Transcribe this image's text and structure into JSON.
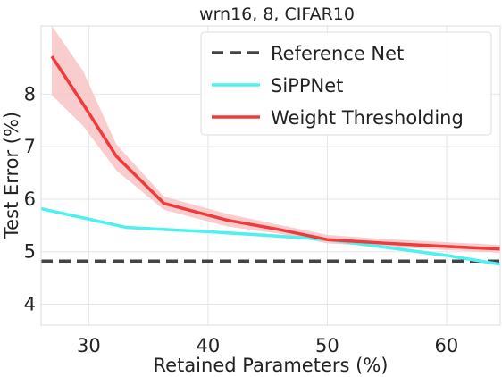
{
  "chart_data": {
    "type": "line",
    "title": "wrn16, 8, CIFAR10",
    "xlabel": "Retained Parameters (%)",
    "ylabel": "Test Error (%)",
    "xlim": [
      26,
      64.5
    ],
    "ylim": [
      3.6,
      9.3
    ],
    "xticks": [
      30,
      40,
      50,
      60
    ],
    "yticks": [
      4,
      5,
      6,
      7,
      8
    ],
    "grid": true,
    "legend_position": "top-right",
    "series": [
      {
        "name": "Reference Net",
        "style": "dashed",
        "color": "#444444",
        "x": [
          26,
          64.5
        ],
        "y": [
          4.82,
          4.82
        ]
      },
      {
        "name": "SiPPNet",
        "style": "solid",
        "color": "#4ff0f0",
        "x": [
          26,
          33.2,
          40,
          45,
          50,
          55,
          60,
          64.5
        ],
        "y": [
          5.82,
          5.46,
          5.38,
          5.31,
          5.23,
          5.08,
          4.93,
          4.76
        ]
      },
      {
        "name": "Weight Thresholding",
        "style": "solid",
        "color": "#ee3b3b",
        "band_color": "#f8c4c4",
        "x": [
          26.9,
          29.5,
          32.3,
          36.3,
          41.6,
          46,
          50,
          55,
          60,
          64.5
        ],
        "y": [
          8.72,
          7.82,
          6.82,
          5.92,
          5.6,
          5.42,
          5.23,
          5.16,
          5.1,
          5.05
        ],
        "lower": [
          7.98,
          7.4,
          6.55,
          5.8,
          5.48,
          5.34,
          5.16,
          5.09,
          5.03,
          4.98
        ],
        "upper": [
          9.3,
          8.45,
          7.05,
          6.05,
          5.72,
          5.51,
          5.32,
          5.24,
          5.18,
          5.13
        ]
      }
    ]
  }
}
